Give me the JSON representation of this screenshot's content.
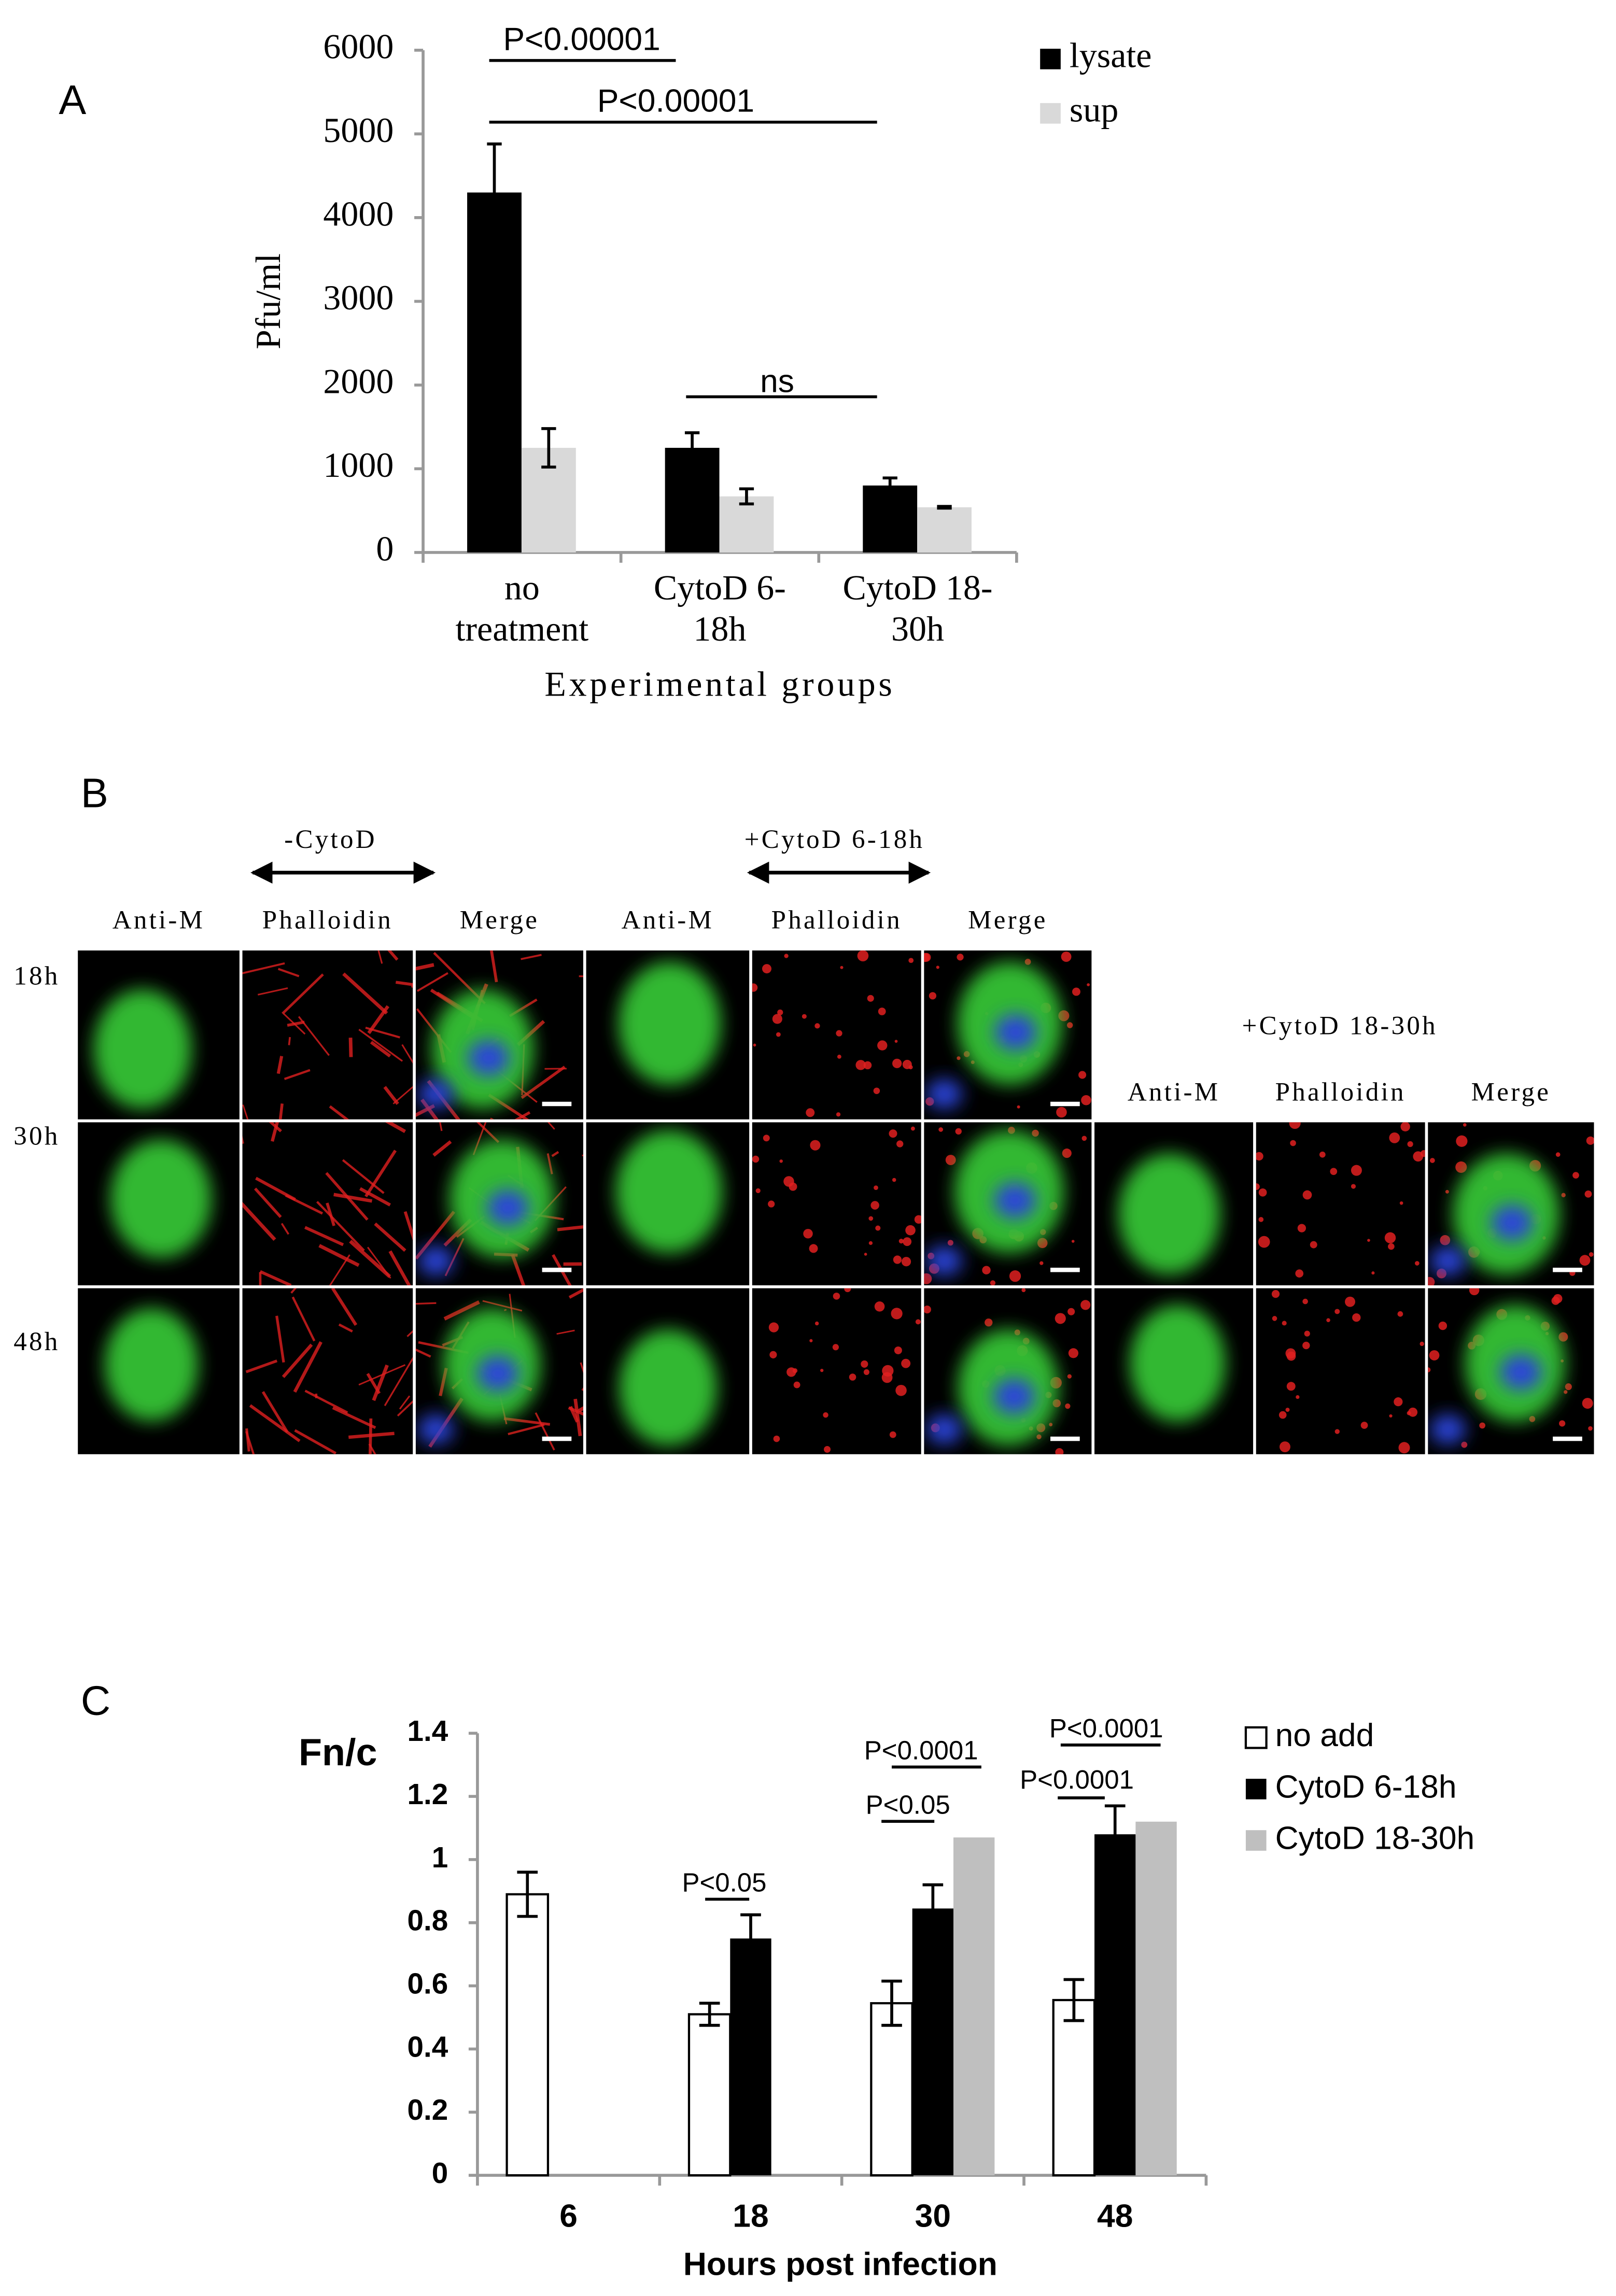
{
  "panel_labels": [
    "A",
    "B",
    "C"
  ],
  "chart_data": [
    {
      "type": "bar",
      "ylabel": "Pfu/ml",
      "xlabel": "Experimental groups",
      "categories": [
        "no treatment",
        "CytoD 6-18h",
        "CytoD 18-30h"
      ],
      "series": [
        {
          "name": "lysate",
          "color": "#000000",
          "values": [
            4300,
            1250,
            800
          ],
          "errors": [
            580,
            180,
            90
          ]
        },
        {
          "name": "sup",
          "color": "#d9d9d9",
          "values": [
            1250,
            670,
            540
          ],
          "errors": [
            230,
            90,
            10
          ]
        }
      ],
      "ylim": [
        0,
        6000
      ],
      "yticks": [
        0,
        1000,
        2000,
        3000,
        4000,
        5000,
        6000
      ],
      "annotations": [
        "P<0.00001",
        "P<0.00001",
        "ns"
      ]
    },
    {
      "type": "bar",
      "ylabel": "Fn/c",
      "xlabel": "Hours post infection",
      "categories": [
        "6",
        "18",
        "30",
        "48"
      ],
      "series": [
        {
          "name": "no add",
          "color": "#ffffff",
          "edgecolor": "#000000",
          "values": [
            0.89,
            0.51,
            0.545,
            0.555
          ],
          "errors": [
            0.07,
            0.035,
            0.07,
            0.065
          ]
        },
        {
          "name": "CytoD 6-18h",
          "color": "#000000",
          "values": [
            null,
            0.75,
            0.845,
            1.08
          ],
          "errors": [
            null,
            0.075,
            0.075,
            0.09
          ]
        },
        {
          "name": "CytoD 18-30h",
          "color": "#bfbfbf",
          "values": [
            null,
            null,
            1.07,
            1.12
          ]
        }
      ],
      "ylim": [
        0,
        1.4
      ],
      "yticks": [
        0,
        0.2,
        0.4,
        0.6,
        0.8,
        1,
        1.2,
        1.4
      ],
      "annotations": [
        "P<0.05",
        "P<0.0001",
        "P<0.05",
        "P<0.0001",
        "P<0.0001"
      ]
    }
  ],
  "panel_b": {
    "treatments": [
      "-CytoD",
      "+CytoD 6-18h",
      "+CytoD 18-30h"
    ],
    "channels": [
      "Anti-M",
      "Phalloidin",
      "Merge"
    ],
    "times": [
      "18h",
      "30h",
      "48h"
    ]
  }
}
